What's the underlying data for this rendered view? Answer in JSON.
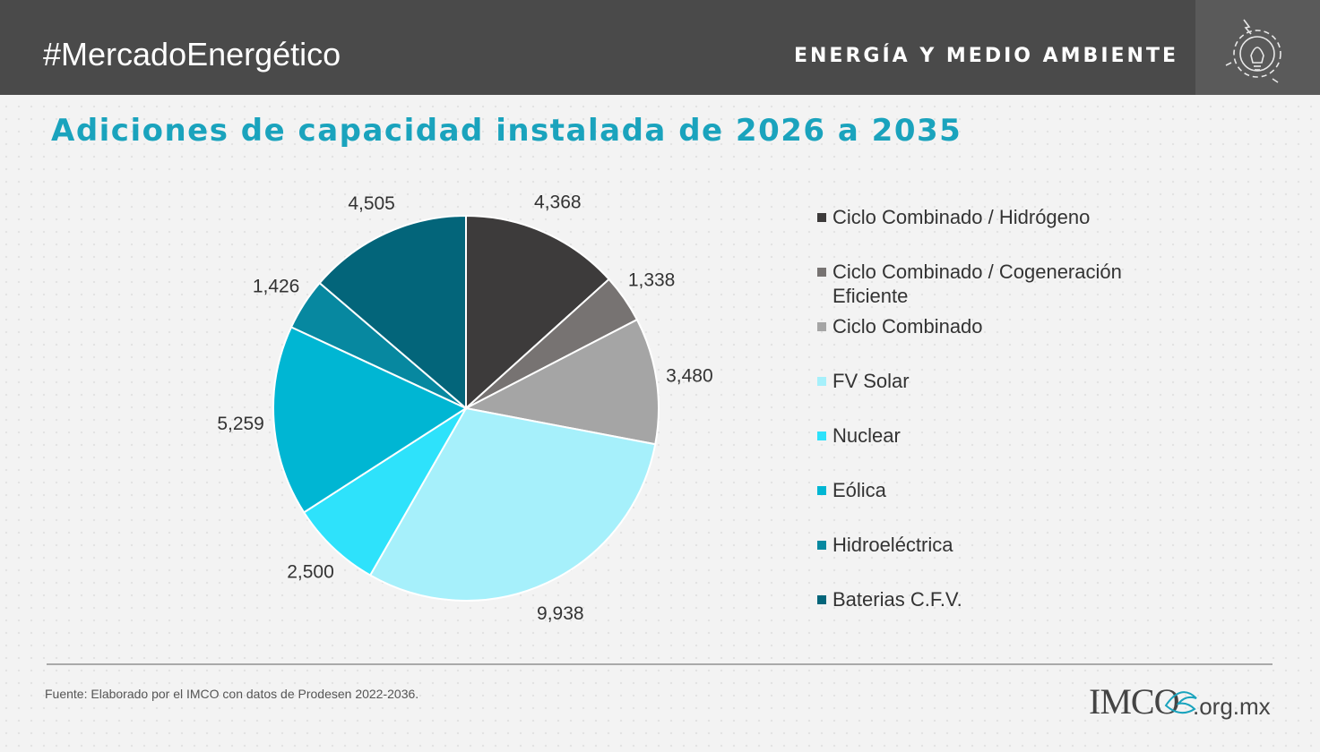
{
  "header": {
    "hashtag": "#MercadoEnergético",
    "section": "ENERGÍA Y MEDIO AMBIENTE",
    "icon": "lightbulb-gear-icon"
  },
  "chart_data": {
    "type": "pie",
    "title": "Adiciones de capacidad instalada de 2026 a 2035",
    "slices": [
      {
        "name": "Ciclo Combinado / Hidrógeno",
        "value": 4368,
        "label": "4,368",
        "color": "#3d3b3b"
      },
      {
        "name": "Ciclo Combinado / Cogeneración Eficiente",
        "value": 1338,
        "label": "1,338",
        "color": "#777372"
      },
      {
        "name": "Ciclo Combinado",
        "value": 3480,
        "label": "3,480",
        "color": "#a5a5a5"
      },
      {
        "name": "FV Solar",
        "value": 9938,
        "label": "9,938",
        "color": "#a6f0fb"
      },
      {
        "name": "Nuclear",
        "value": 2500,
        "label": "2,500",
        "color": "#2ee2fb"
      },
      {
        "name": "Eólica",
        "value": 5259,
        "label": "5,259",
        "color": "#00b6d3"
      },
      {
        "name": "Hidroeléctrica",
        "value": 1426,
        "label": "1,426",
        "color": "#0788a0"
      },
      {
        "name": "Baterias C.F.V.",
        "value": 4505,
        "label": "4,505",
        "color": "#03657a"
      }
    ],
    "legend_position": "right"
  },
  "footer": {
    "source": "Fuente:  Elaborado por el IMCO con datos de Prodesen 2022-2036.",
    "logo_text": "IMCO",
    "logo_domain": ".org.mx"
  }
}
